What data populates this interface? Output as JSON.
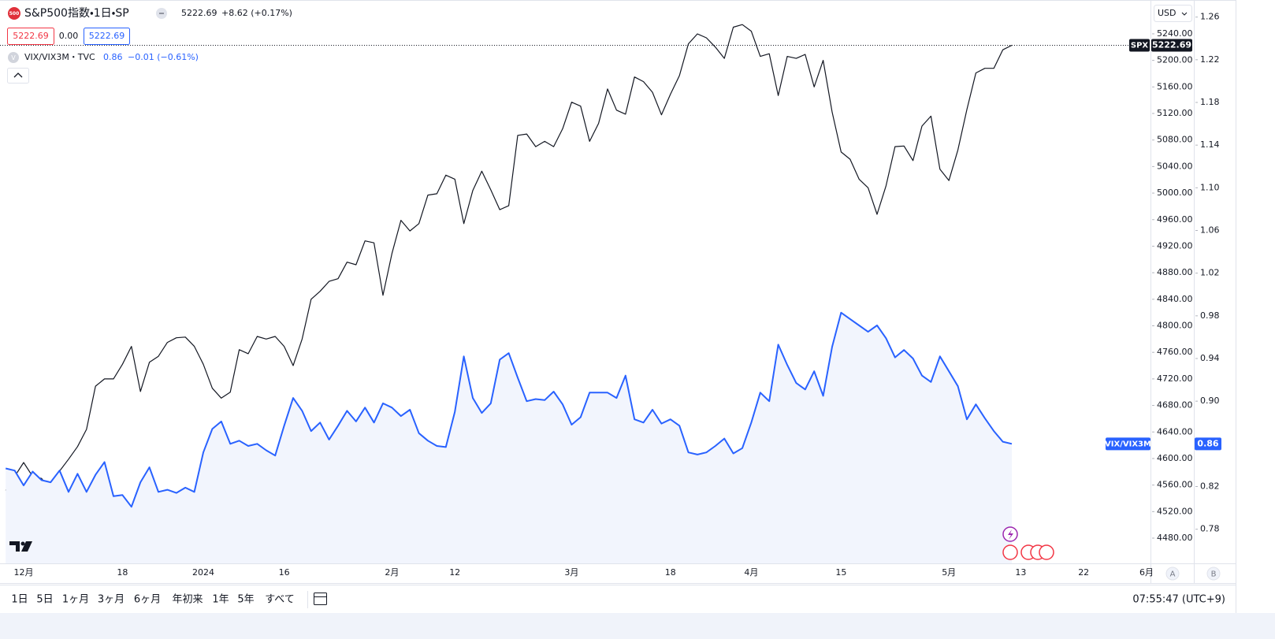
{
  "chart_data": {
    "type": "line",
    "categories": [
      null,
      null,
      "12月",
      null,
      null,
      null,
      null,
      null,
      null,
      null,
      null,
      null,
      null,
      "18",
      null,
      null,
      null,
      null,
      null,
      null,
      null,
      null,
      "2024",
      null,
      null,
      null,
      null,
      null,
      null,
      null,
      null,
      "16",
      null,
      null,
      null,
      null,
      null,
      null,
      null,
      null,
      null,
      null,
      null,
      "2月",
      null,
      null,
      null,
      null,
      null,
      null,
      "12",
      null,
      null,
      null,
      null,
      null,
      null,
      null,
      null,
      null,
      null,
      null,
      null,
      "3月",
      null,
      null,
      null,
      null,
      null,
      null,
      null,
      null,
      null,
      null,
      "18",
      null,
      null,
      null,
      null,
      null,
      null,
      null,
      null,
      "4月",
      null,
      null,
      null,
      null,
      null,
      null,
      null,
      null,
      null,
      "15",
      null,
      null,
      null,
      null,
      null,
      null,
      null,
      null,
      null,
      null,
      null,
      "5月",
      null,
      null,
      null,
      null,
      null,
      null,
      null,
      "13",
      null,
      null,
      null,
      null,
      null,
      null,
      "22",
      null,
      null,
      null,
      null,
      null,
      null,
      "6月"
    ],
    "series": [
      {
        "name": "SPX",
        "color": "#131722",
        "values": [
          4552,
          4573,
          4594,
          4573,
          4570,
          4551,
          4581,
          4599,
          4618,
          4644,
          4709,
          4720,
          4720,
          4742,
          4769,
          4701,
          4745,
          4754,
          4775,
          4782,
          4783,
          4769,
          4742,
          4706,
          4691,
          4700,
          4764,
          4758,
          4784,
          4780,
          4784,
          4769,
          4740,
          4780,
          4840,
          4852,
          4867,
          4871,
          4896,
          4892,
          4928,
          4925,
          4846,
          4909,
          4959,
          4943,
          4954,
          4997,
          4999,
          5027,
          5021,
          4954,
          5004,
          5033,
          5005,
          4975,
          4981,
          5087,
          5089,
          5070,
          5078,
          5070,
          5097,
          5137,
          5131,
          5078,
          5105,
          5157,
          5125,
          5119,
          5175,
          5168,
          5152,
          5118,
          5149,
          5177,
          5225,
          5240,
          5234,
          5220,
          5203,
          5250,
          5254,
          5244,
          5206,
          5210,
          5147,
          5206,
          5203,
          5209,
          5160,
          5200,
          5122,
          5062,
          5051,
          5021,
          5008,
          4968,
          5011,
          5070,
          5071,
          5049,
          5101,
          5116,
          5036,
          5019,
          5065,
          5126,
          5181,
          5188,
          5188,
          5216,
          5222.69,
          null,
          null,
          null,
          null,
          null,
          null,
          null,
          null,
          null,
          null,
          null,
          null,
          null,
          null,
          null
        ]
      },
      {
        "name": "VIX/VIX3M",
        "color": "#2962ff",
        "axis": "y2",
        "area_color": "#f2f5fd",
        "values": [
          0.837,
          0.835,
          0.821,
          0.834,
          0.826,
          0.824,
          0.835,
          0.815,
          0.832,
          0.815,
          0.831,
          0.843,
          0.811,
          0.812,
          0.801,
          0.824,
          0.838,
          0.815,
          0.817,
          0.814,
          0.819,
          0.815,
          0.852,
          0.874,
          0.881,
          0.86,
          0.863,
          0.858,
          0.86,
          0.854,
          0.849,
          0.877,
          0.903,
          0.891,
          0.872,
          0.88,
          0.864,
          0.877,
          0.891,
          0.881,
          0.894,
          0.88,
          0.898,
          0.894,
          0.886,
          0.892,
          0.87,
          0.863,
          0.858,
          0.857,
          0.89,
          0.942,
          0.903,
          0.889,
          0.898,
          0.939,
          0.945,
          0.922,
          0.9,
          0.902,
          0.901,
          0.909,
          0.897,
          0.878,
          0.885,
          0.908,
          0.908,
          0.908,
          0.903,
          0.924,
          0.883,
          0.88,
          0.892,
          0.879,
          0.883,
          0.877,
          0.852,
          0.85,
          0.852,
          0.858,
          0.865,
          0.851,
          0.856,
          0.88,
          0.908,
          0.9,
          0.953,
          0.934,
          0.917,
          0.911,
          0.928,
          0.905,
          0.951,
          0.983,
          0.977,
          0.971,
          0.965,
          0.971,
          0.959,
          0.941,
          0.948,
          0.94,
          0.924,
          0.918,
          0.942,
          0.928,
          0.914,
          0.883,
          0.897,
          0.884,
          0.872,
          0.862,
          0.86,
          null,
          null,
          null,
          null,
          null,
          null,
          null,
          null,
          null,
          null,
          null,
          null,
          null,
          null,
          null
        ]
      }
    ],
    "ylim": [
      4442,
      5291
    ],
    "yticks": [
      {
        "value": 4480,
        "label": "4480.00"
      },
      {
        "value": 4520,
        "label": "4520.00"
      },
      {
        "value": 4560,
        "label": "4560.00"
      },
      {
        "value": 4600,
        "label": "4600.00"
      },
      {
        "value": 4640,
        "label": "4640.00"
      },
      {
        "value": 4680,
        "label": "4680.00"
      },
      {
        "value": 4720,
        "label": "4720.00"
      },
      {
        "value": 4760,
        "label": "4760.00"
      },
      {
        "value": 4800,
        "label": "4800.00"
      },
      {
        "value": 4840,
        "label": "4840.00"
      },
      {
        "value": 4880,
        "label": "4880.00"
      },
      {
        "value": 4920,
        "label": "4920.00"
      },
      {
        "value": 4960,
        "label": "4960.00"
      },
      {
        "value": 5000,
        "label": "5000.00"
      },
      {
        "value": 5040,
        "label": "5040.00"
      },
      {
        "value": 5080,
        "label": "5080.00"
      },
      {
        "value": 5120,
        "label": "5120.00"
      },
      {
        "value": 5160,
        "label": "5160.00"
      },
      {
        "value": 5200,
        "label": "5200.00"
      },
      {
        "value": 5240,
        "label": "5240.00"
      }
    ],
    "y2lim": [
      0.748,
      1.276
    ],
    "y2ticks": [
      0.78,
      0.82,
      0.86,
      {
        "value": 0.9,
        "label": "0.90"
      },
      0.94,
      0.98,
      1.02,
      1.06,
      {
        "value": 1.1,
        "label": "1.10"
      },
      1.14,
      1.18,
      1.22,
      1.26
    ],
    "grid": false,
    "currency": "USD",
    "scale_buttons": [
      "A",
      "B"
    ]
  },
  "header": {
    "logo": "500",
    "title": "S&P500指数・1日・SP",
    "change": "+8.62 (+0.17%)",
    "spread": "0.00"
  },
  "compare": {
    "icon": "V",
    "title": "VIX/VIX3M・TVC",
    "change": "−0.01 (−0.61%)"
  },
  "toolbar": {
    "ranges": [
      "1日",
      "5日",
      "1ヶ月",
      "3ヶ月",
      "6ヶ月",
      "年初来",
      "1年",
      "5年",
      "すべて"
    ],
    "time": "07:55:47 (UTC+9)"
  }
}
